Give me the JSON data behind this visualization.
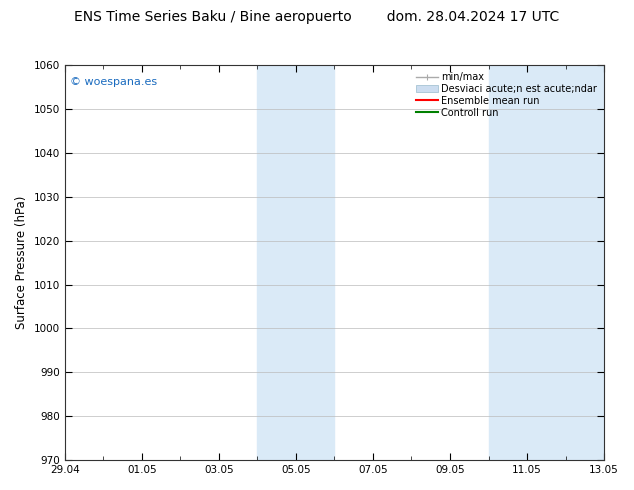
{
  "title": "ENS Time Series Baku / Bine aeropuerto        dom. 28.04.2024 17 UTC",
  "ylabel": "Surface Pressure (hPa)",
  "ylim": [
    970,
    1060
  ],
  "yticks": [
    970,
    980,
    990,
    1000,
    1010,
    1020,
    1030,
    1040,
    1050,
    1060
  ],
  "xtick_labels": [
    "29.04",
    "01.05",
    "03.05",
    "05.05",
    "07.05",
    "09.05",
    "11.05",
    "13.05"
  ],
  "xtick_positions": [
    0,
    2,
    4,
    6,
    8,
    10,
    12,
    14
  ],
  "shaded_bands": [
    {
      "xstart": 5,
      "xend": 7
    },
    {
      "xstart": 11,
      "xend": 14
    }
  ],
  "watermark_text": "© woespana.es",
  "watermark_color": "#1a6bbf",
  "background_color": "#ffffff",
  "plot_bg_color": "#ffffff",
  "band_color": "#daeaf7",
  "grid_color": "#bbbbbb",
  "title_fontsize": 10,
  "axis_label_fontsize": 8.5,
  "tick_fontsize": 7.5,
  "x_num_days": 14,
  "legend_label_1": "min/max",
  "legend_label_2": "Desviaci acute;n est acute;ndar",
  "legend_label_3": "Ensemble mean run",
  "legend_label_4": "Controll run",
  "legend_color_1": "#aaaaaa",
  "legend_color_2": "#ccddf0",
  "legend_color_3": "#ff0000",
  "legend_color_4": "#008000"
}
